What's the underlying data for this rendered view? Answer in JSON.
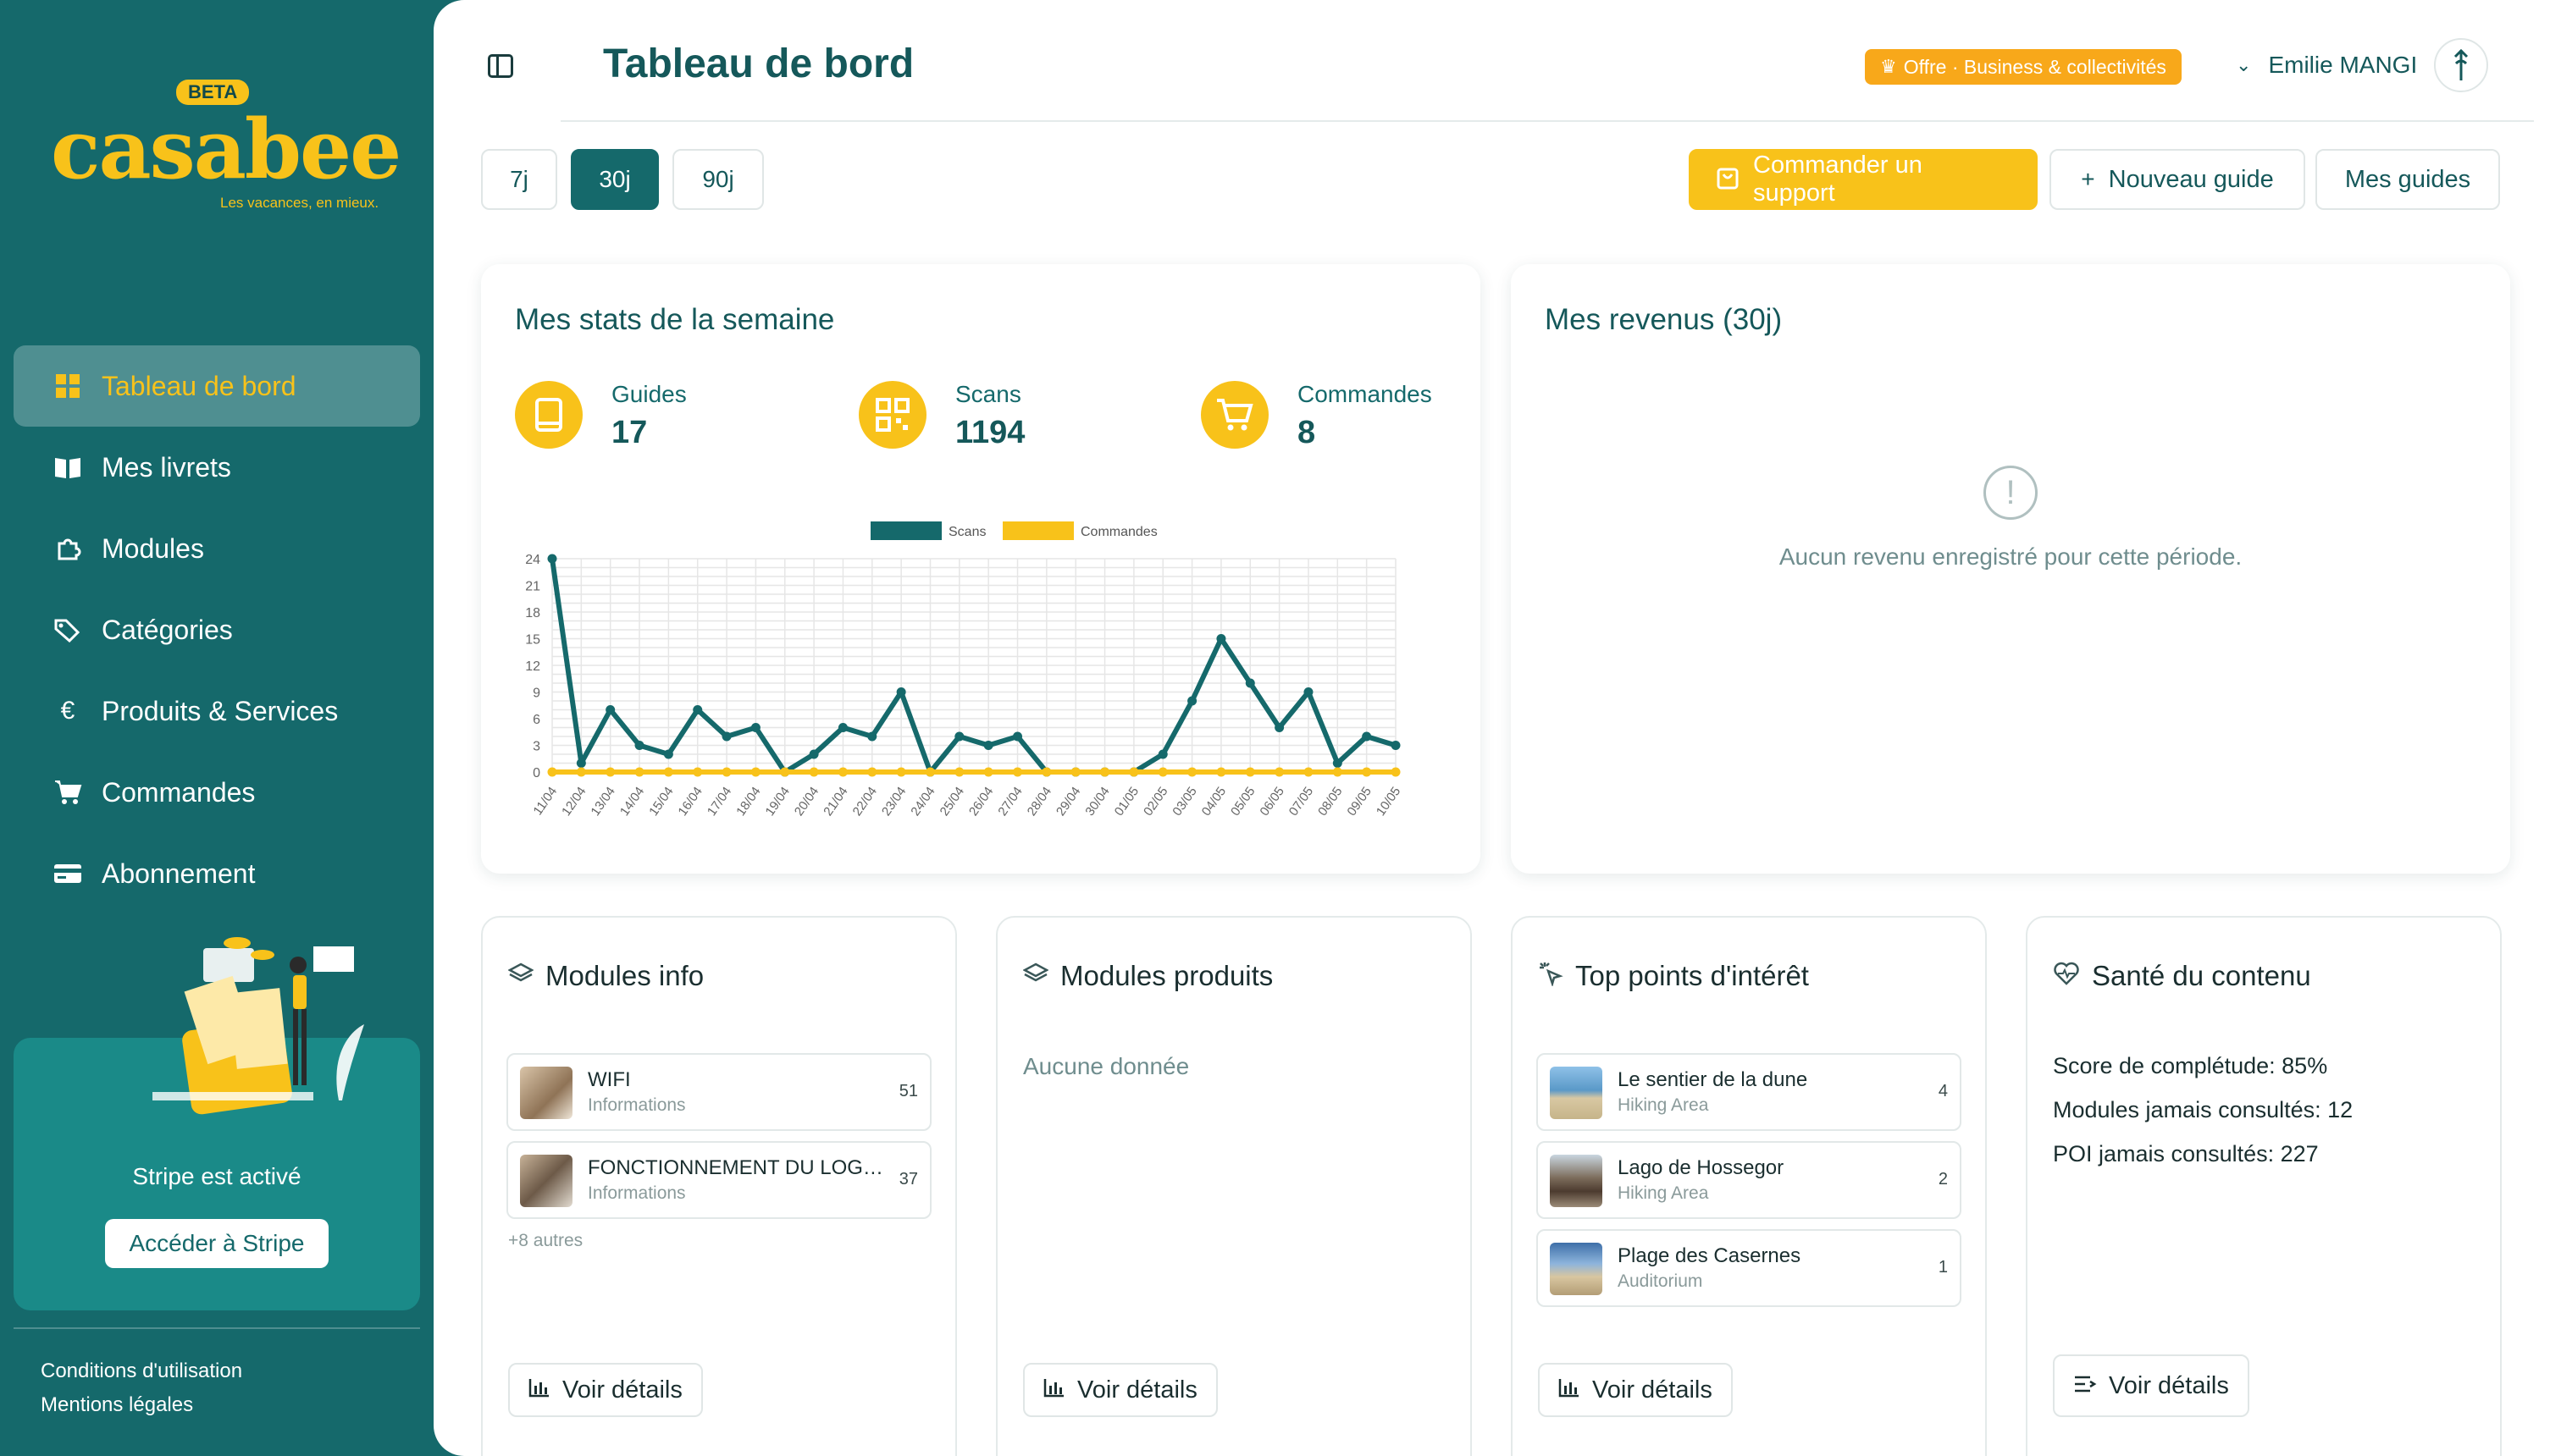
{
  "brand": {
    "beta_label": "BETA",
    "name": "casabee",
    "tagline": "Les vacances, en mieux."
  },
  "sidebar": {
    "items": [
      {
        "label": "Tableau de bord",
        "icon": "grid-icon",
        "active": true
      },
      {
        "label": "Mes livrets",
        "icon": "book-icon",
        "active": false
      },
      {
        "label": "Modules",
        "icon": "puzzle-icon",
        "active": false
      },
      {
        "label": "Catégories",
        "icon": "tags-icon",
        "active": false
      },
      {
        "label": "Produits & Services",
        "icon": "euro-icon",
        "active": false
      },
      {
        "label": "Commandes",
        "icon": "cart-icon",
        "active": false
      },
      {
        "label": "Abonnement",
        "icon": "credit-card-icon",
        "active": false
      }
    ],
    "stripe": {
      "status": "Stripe est activé",
      "button": "Accéder à Stripe"
    },
    "footer": {
      "terms": "Conditions d'utilisation",
      "legal": "Mentions légales"
    }
  },
  "header": {
    "title": "Tableau de bord",
    "offer": "Offre · Business & collectivités",
    "user_name": "Emilie MANGI"
  },
  "ranges": [
    "7j",
    "30j",
    "90j"
  ],
  "active_range": "30j",
  "actions": {
    "order_support": "Commander un support",
    "new_guide": "Nouveau guide",
    "my_guides": "Mes guides"
  },
  "stats_card": {
    "title": "Mes stats de la semaine",
    "stats": [
      {
        "label": "Guides",
        "value": "17"
      },
      {
        "label": "Scans",
        "value": "1194"
      },
      {
        "label": "Commandes",
        "value": "8"
      }
    ]
  },
  "revenue_card": {
    "title": "Mes revenus (30j)",
    "empty": "Aucun revenu enregistré pour cette période."
  },
  "chart_data": {
    "type": "line",
    "x": [
      "11/04",
      "12/04",
      "13/04",
      "14/04",
      "15/04",
      "16/04",
      "17/04",
      "18/04",
      "19/04",
      "20/04",
      "21/04",
      "22/04",
      "23/04",
      "24/04",
      "25/04",
      "26/04",
      "27/04",
      "28/04",
      "29/04",
      "30/04",
      "01/05",
      "02/05",
      "03/05",
      "04/05",
      "05/05",
      "06/05",
      "07/05",
      "08/05",
      "09/05",
      "10/05"
    ],
    "series": [
      {
        "name": "Scans",
        "color": "#15696b",
        "values": [
          24,
          1,
          7,
          3,
          2,
          7,
          4,
          5,
          0,
          2,
          5,
          4,
          9,
          0,
          4,
          3,
          4,
          0,
          0,
          0,
          0,
          2,
          8,
          15,
          10,
          5,
          9,
          1,
          4,
          3
        ]
      },
      {
        "name": "Commandes",
        "color": "#f8c21a",
        "values": [
          0,
          0,
          0,
          0,
          0,
          0,
          0,
          0,
          0,
          0,
          0,
          0,
          0,
          0,
          0,
          0,
          0,
          0,
          0,
          0,
          0,
          0,
          0,
          0,
          0,
          0,
          0,
          0,
          0,
          0
        ]
      }
    ],
    "y_ticks": [
      0,
      3,
      6,
      9,
      12,
      15,
      18,
      21,
      24
    ],
    "ylim": [
      0,
      24
    ],
    "grid": true,
    "legend": "top-center"
  },
  "modules_info": {
    "title": "Modules info",
    "items": [
      {
        "name": "WIFI",
        "sub": "Informations",
        "count": "51"
      },
      {
        "name": "FONCTIONNEMENT DU LOGEMENT",
        "sub": "Informations",
        "count": "37"
      }
    ],
    "more": "+8 autres",
    "details": "Voir détails"
  },
  "modules_produits": {
    "title": "Modules produits",
    "empty": "Aucune donnée",
    "details": "Voir détails"
  },
  "top_poi": {
    "title": "Top points d'intérêt",
    "items": [
      {
        "name": "Le sentier de la dune",
        "sub": "Hiking Area",
        "count": "4"
      },
      {
        "name": "Lago de Hossegor",
        "sub": "Hiking Area",
        "count": "2"
      },
      {
        "name": "Plage des Casernes",
        "sub": "Auditorium",
        "count": "1"
      }
    ],
    "details": "Voir détails"
  },
  "health": {
    "title": "Santé du contenu",
    "lines": [
      "Score de complétude: 85%",
      "Modules jamais consultés: 12",
      "POI jamais consultés: 227"
    ],
    "details": "Voir détails"
  },
  "colors": {
    "teal": "#15696b",
    "yellow": "#f8c21a",
    "orange": "#f8a81a"
  }
}
